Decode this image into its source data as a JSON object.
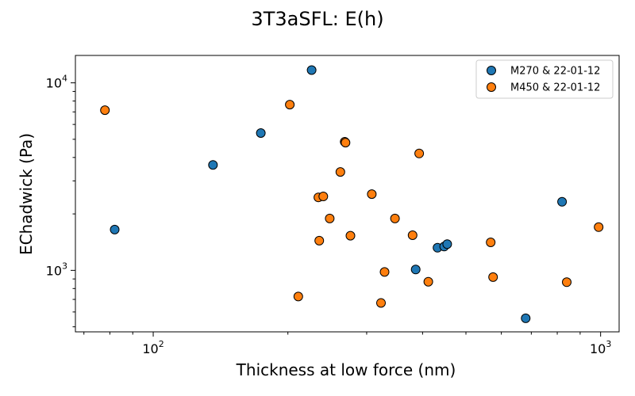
{
  "chart_data": {
    "type": "scatter",
    "title": "3T3aSFL: E(h)",
    "xlabel": "Thickness at low force (nm)",
    "ylabel": "EChadwick (Pa)",
    "xscale": "log",
    "yscale": "log",
    "xlim": [
      67,
      1100
    ],
    "ylim": [
      470,
      14000
    ],
    "xticks": [
      {
        "value": 100,
        "base": "10",
        "exp": "2"
      },
      {
        "value": 1000,
        "base": "10",
        "exp": "3"
      }
    ],
    "yticks": [
      {
        "value": 1000,
        "base": "10",
        "exp": "3"
      },
      {
        "value": 10000,
        "base": "10",
        "exp": "4"
      }
    ],
    "legend_position": "top-right",
    "grid": false,
    "series": [
      {
        "name": "M270 & 22-01-12",
        "color": "#1f77b4",
        "points": [
          {
            "x": 82,
            "y": 1650
          },
          {
            "x": 136,
            "y": 3650
          },
          {
            "x": 174,
            "y": 5400
          },
          {
            "x": 226,
            "y": 11700
          },
          {
            "x": 386,
            "y": 1010
          },
          {
            "x": 432,
            "y": 1320
          },
          {
            "x": 447,
            "y": 1340
          },
          {
            "x": 454,
            "y": 1380
          },
          {
            "x": 680,
            "y": 555
          },
          {
            "x": 820,
            "y": 2320
          }
        ]
      },
      {
        "name": "M450 & 22-01-12",
        "color": "#ff7f0e",
        "points": [
          {
            "x": 78,
            "y": 7150
          },
          {
            "x": 202,
            "y": 7650
          },
          {
            "x": 211,
            "y": 725
          },
          {
            "x": 234,
            "y": 2450
          },
          {
            "x": 235,
            "y": 1440
          },
          {
            "x": 240,
            "y": 2480
          },
          {
            "x": 248,
            "y": 1890
          },
          {
            "x": 262,
            "y": 3350
          },
          {
            "x": 268,
            "y": 4850
          },
          {
            "x": 269,
            "y": 4800
          },
          {
            "x": 276,
            "y": 1530
          },
          {
            "x": 308,
            "y": 2550
          },
          {
            "x": 323,
            "y": 670
          },
          {
            "x": 329,
            "y": 980
          },
          {
            "x": 347,
            "y": 1890
          },
          {
            "x": 380,
            "y": 1540
          },
          {
            "x": 393,
            "y": 4200
          },
          {
            "x": 412,
            "y": 870
          },
          {
            "x": 568,
            "y": 1410
          },
          {
            "x": 575,
            "y": 920
          },
          {
            "x": 840,
            "y": 865
          },
          {
            "x": 990,
            "y": 1700
          }
        ]
      }
    ]
  }
}
